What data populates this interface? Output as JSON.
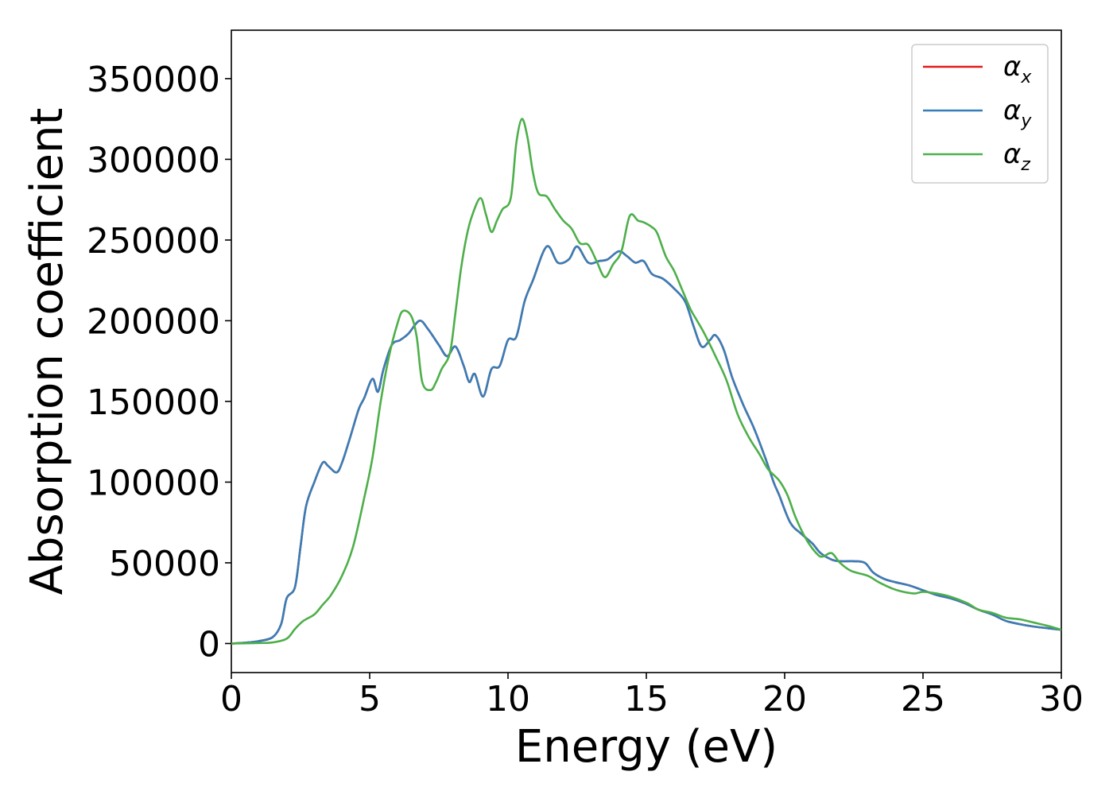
{
  "chart_data": {
    "type": "line",
    "title": "",
    "xlabel": "Energy (eV)",
    "ylabel": "Absorption coefficient",
    "xlim": [
      0,
      30
    ],
    "ylim": [
      -18000,
      380000
    ],
    "xticks": [
      0,
      5,
      10,
      15,
      20,
      25,
      30
    ],
    "yticks": [
      0,
      50000,
      100000,
      150000,
      200000,
      250000,
      300000,
      350000
    ],
    "xtick_labels": [
      "0",
      "5",
      "10",
      "15",
      "20",
      "25",
      "30"
    ],
    "ytick_labels": [
      "0",
      "50000",
      "100000",
      "150000",
      "200000",
      "250000",
      "300000",
      "350000"
    ],
    "grid": false,
    "legend_position": "top-right",
    "series": [
      {
        "name": "α",
        "subscript": "x",
        "color": "#e41a1c",
        "points": [
          [
            0,
            0
          ],
          [
            0.5,
            500
          ],
          [
            1.0,
            1500
          ],
          [
            1.5,
            4000
          ],
          [
            1.8,
            12000
          ],
          [
            2.0,
            28000
          ],
          [
            2.3,
            35000
          ],
          [
            2.5,
            60000
          ],
          [
            2.7,
            85000
          ],
          [
            3.0,
            100000
          ],
          [
            3.3,
            112000
          ],
          [
            3.5,
            110000
          ],
          [
            3.8,
            106000
          ],
          [
            4.0,
            112000
          ],
          [
            4.3,
            128000
          ],
          [
            4.6,
            145000
          ],
          [
            4.8,
            152000
          ],
          [
            5.1,
            164000
          ],
          [
            5.3,
            156000
          ],
          [
            5.5,
            170000
          ],
          [
            5.8,
            185000
          ],
          [
            6.1,
            188000
          ],
          [
            6.4,
            192000
          ],
          [
            6.8,
            200000
          ],
          [
            7.1,
            195000
          ],
          [
            7.5,
            185000
          ],
          [
            7.8,
            178000
          ],
          [
            8.1,
            184000
          ],
          [
            8.4,
            172000
          ],
          [
            8.6,
            162000
          ],
          [
            8.8,
            167000
          ],
          [
            9.1,
            153000
          ],
          [
            9.4,
            170000
          ],
          [
            9.7,
            172000
          ],
          [
            10.0,
            188000
          ],
          [
            10.3,
            190000
          ],
          [
            10.6,
            212000
          ],
          [
            10.9,
            225000
          ],
          [
            11.4,
            246000
          ],
          [
            11.8,
            236000
          ],
          [
            12.2,
            238000
          ],
          [
            12.5,
            246000
          ],
          [
            12.9,
            236000
          ],
          [
            13.3,
            237000
          ],
          [
            13.6,
            238000
          ],
          [
            14.0,
            243000
          ],
          [
            14.3,
            240000
          ],
          [
            14.6,
            236000
          ],
          [
            14.9,
            237000
          ],
          [
            15.2,
            229000
          ],
          [
            15.6,
            226000
          ],
          [
            16.0,
            220000
          ],
          [
            16.4,
            212000
          ],
          [
            16.7,
            197000
          ],
          [
            17.0,
            184000
          ],
          [
            17.3,
            188000
          ],
          [
            17.5,
            191000
          ],
          [
            17.8,
            182000
          ],
          [
            18.1,
            165000
          ],
          [
            18.5,
            148000
          ],
          [
            18.9,
            133000
          ],
          [
            19.3,
            115000
          ],
          [
            19.6,
            100000
          ],
          [
            19.8,
            92000
          ],
          [
            20.2,
            75000
          ],
          [
            20.6,
            68000
          ],
          [
            21.0,
            62000
          ],
          [
            21.3,
            56000
          ],
          [
            21.7,
            52000
          ],
          [
            22.0,
            51000
          ],
          [
            22.5,
            51000
          ],
          [
            22.9,
            50000
          ],
          [
            23.2,
            44000
          ],
          [
            23.6,
            40000
          ],
          [
            24.0,
            38000
          ],
          [
            24.5,
            36000
          ],
          [
            25.0,
            33000
          ],
          [
            25.5,
            30000
          ],
          [
            26.0,
            28000
          ],
          [
            26.5,
            25000
          ],
          [
            27.0,
            21000
          ],
          [
            27.5,
            18000
          ],
          [
            28.0,
            14000
          ],
          [
            28.5,
            12000
          ],
          [
            29.0,
            10500
          ],
          [
            29.5,
            9500
          ],
          [
            30.0,
            8500
          ]
        ]
      },
      {
        "name": "α",
        "subscript": "y",
        "color": "#377eb8",
        "points": [
          [
            0,
            0
          ],
          [
            0.5,
            500
          ],
          [
            1.0,
            1500
          ],
          [
            1.5,
            4000
          ],
          [
            1.8,
            12000
          ],
          [
            2.0,
            28000
          ],
          [
            2.3,
            35000
          ],
          [
            2.5,
            60000
          ],
          [
            2.7,
            85000
          ],
          [
            3.0,
            100000
          ],
          [
            3.3,
            112000
          ],
          [
            3.5,
            110000
          ],
          [
            3.8,
            106000
          ],
          [
            4.0,
            112000
          ],
          [
            4.3,
            128000
          ],
          [
            4.6,
            145000
          ],
          [
            4.8,
            152000
          ],
          [
            5.1,
            164000
          ],
          [
            5.3,
            156000
          ],
          [
            5.5,
            170000
          ],
          [
            5.8,
            185000
          ],
          [
            6.1,
            188000
          ],
          [
            6.4,
            192000
          ],
          [
            6.8,
            200000
          ],
          [
            7.1,
            195000
          ],
          [
            7.5,
            185000
          ],
          [
            7.8,
            178000
          ],
          [
            8.1,
            184000
          ],
          [
            8.4,
            172000
          ],
          [
            8.6,
            162000
          ],
          [
            8.8,
            167000
          ],
          [
            9.1,
            153000
          ],
          [
            9.4,
            170000
          ],
          [
            9.7,
            172000
          ],
          [
            10.0,
            188000
          ],
          [
            10.3,
            190000
          ],
          [
            10.6,
            212000
          ],
          [
            10.9,
            225000
          ],
          [
            11.4,
            246000
          ],
          [
            11.8,
            236000
          ],
          [
            12.2,
            238000
          ],
          [
            12.5,
            246000
          ],
          [
            12.9,
            236000
          ],
          [
            13.3,
            237000
          ],
          [
            13.6,
            238000
          ],
          [
            14.0,
            243000
          ],
          [
            14.3,
            240000
          ],
          [
            14.6,
            236000
          ],
          [
            14.9,
            237000
          ],
          [
            15.2,
            229000
          ],
          [
            15.6,
            226000
          ],
          [
            16.0,
            220000
          ],
          [
            16.4,
            212000
          ],
          [
            16.7,
            197000
          ],
          [
            17.0,
            184000
          ],
          [
            17.3,
            188000
          ],
          [
            17.5,
            191000
          ],
          [
            17.8,
            182000
          ],
          [
            18.1,
            165000
          ],
          [
            18.5,
            148000
          ],
          [
            18.9,
            133000
          ],
          [
            19.3,
            115000
          ],
          [
            19.6,
            100000
          ],
          [
            19.8,
            92000
          ],
          [
            20.2,
            75000
          ],
          [
            20.6,
            68000
          ],
          [
            21.0,
            62000
          ],
          [
            21.3,
            56000
          ],
          [
            21.7,
            52000
          ],
          [
            22.0,
            51000
          ],
          [
            22.5,
            51000
          ],
          [
            22.9,
            50000
          ],
          [
            23.2,
            44000
          ],
          [
            23.6,
            40000
          ],
          [
            24.0,
            38000
          ],
          [
            24.5,
            36000
          ],
          [
            25.0,
            33000
          ],
          [
            25.5,
            30000
          ],
          [
            26.0,
            28000
          ],
          [
            26.5,
            25000
          ],
          [
            27.0,
            21000
          ],
          [
            27.5,
            18000
          ],
          [
            28.0,
            14000
          ],
          [
            28.5,
            12000
          ],
          [
            29.0,
            10500
          ],
          [
            29.5,
            9500
          ],
          [
            30.0,
            8500
          ]
        ]
      },
      {
        "name": "α",
        "subscript": "z",
        "color": "#4daf4a",
        "points": [
          [
            0,
            0
          ],
          [
            1.0,
            300
          ],
          [
            1.5,
            700
          ],
          [
            2.0,
            3000
          ],
          [
            2.3,
            9000
          ],
          [
            2.6,
            14000
          ],
          [
            3.0,
            18000
          ],
          [
            3.3,
            24000
          ],
          [
            3.6,
            30000
          ],
          [
            4.0,
            42000
          ],
          [
            4.4,
            60000
          ],
          [
            4.8,
            90000
          ],
          [
            5.1,
            115000
          ],
          [
            5.4,
            150000
          ],
          [
            5.7,
            178000
          ],
          [
            6.0,
            198000
          ],
          [
            6.2,
            206000
          ],
          [
            6.5,
            203000
          ],
          [
            6.7,
            190000
          ],
          [
            6.9,
            162000
          ],
          [
            7.2,
            157000
          ],
          [
            7.4,
            162000
          ],
          [
            7.6,
            170000
          ],
          [
            7.9,
            180000
          ],
          [
            8.1,
            205000
          ],
          [
            8.3,
            232000
          ],
          [
            8.5,
            252000
          ],
          [
            8.7,
            265000
          ],
          [
            9.0,
            276000
          ],
          [
            9.2,
            266000
          ],
          [
            9.4,
            255000
          ],
          [
            9.6,
            262000
          ],
          [
            9.8,
            269000
          ],
          [
            10.1,
            276000
          ],
          [
            10.3,
            310000
          ],
          [
            10.5,
            325000
          ],
          [
            10.7,
            314000
          ],
          [
            10.9,
            292000
          ],
          [
            11.1,
            279000
          ],
          [
            11.4,
            277000
          ],
          [
            11.7,
            269000
          ],
          [
            12.0,
            262000
          ],
          [
            12.3,
            257000
          ],
          [
            12.6,
            248000
          ],
          [
            12.9,
            247000
          ],
          [
            13.2,
            237000
          ],
          [
            13.5,
            227000
          ],
          [
            13.8,
            235000
          ],
          [
            14.1,
            243000
          ],
          [
            14.4,
            265000
          ],
          [
            14.7,
            262000
          ],
          [
            14.9,
            261000
          ],
          [
            15.2,
            258000
          ],
          [
            15.4,
            254000
          ],
          [
            15.7,
            240000
          ],
          [
            16.0,
            231000
          ],
          [
            16.3,
            219000
          ],
          [
            16.6,
            207000
          ],
          [
            16.8,
            201000
          ],
          [
            17.1,
            192000
          ],
          [
            17.5,
            178000
          ],
          [
            17.9,
            163000
          ],
          [
            18.3,
            142000
          ],
          [
            18.7,
            128000
          ],
          [
            19.1,
            117000
          ],
          [
            19.4,
            108000
          ],
          [
            19.8,
            101000
          ],
          [
            20.1,
            92000
          ],
          [
            20.4,
            78000
          ],
          [
            20.8,
            64000
          ],
          [
            21.2,
            55000
          ],
          [
            21.4,
            54000
          ],
          [
            21.7,
            56000
          ],
          [
            22.0,
            50000
          ],
          [
            22.4,
            45000
          ],
          [
            23.0,
            42000
          ],
          [
            23.4,
            38000
          ],
          [
            23.9,
            34000
          ],
          [
            24.3,
            32000
          ],
          [
            24.7,
            31000
          ],
          [
            25.0,
            32000
          ],
          [
            25.5,
            31000
          ],
          [
            26.0,
            29000
          ],
          [
            26.6,
            25000
          ],
          [
            27.0,
            21000
          ],
          [
            27.5,
            19000
          ],
          [
            28.0,
            16000
          ],
          [
            28.5,
            15000
          ],
          [
            29.0,
            13000
          ],
          [
            29.5,
            11000
          ],
          [
            30.0,
            8500
          ]
        ]
      }
    ]
  }
}
